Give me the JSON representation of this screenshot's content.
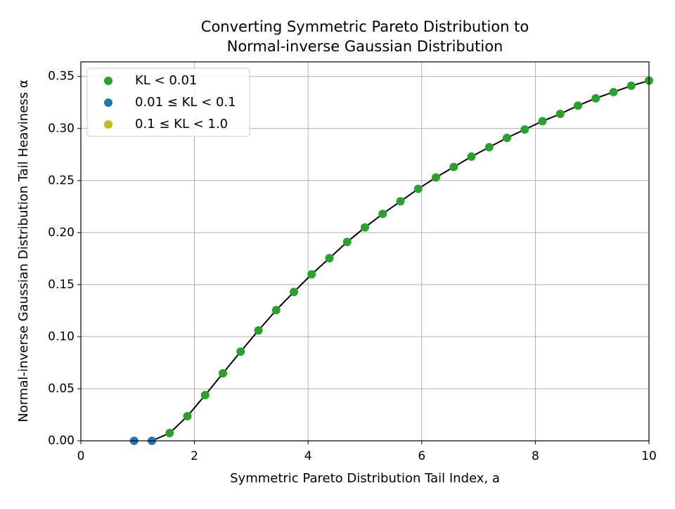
{
  "chart_data": {
    "type": "scatter",
    "title": [
      "Converting Symmetric Pareto Distribution to",
      "Normal-inverse Gaussian Distribution"
    ],
    "x_label": "Symmetric Pareto Distribution Tail Index, a",
    "y_label": "Normal-inverse Gaussian Distribution Tail Heaviness α",
    "xlim": [
      0,
      10
    ],
    "ylim": [
      0,
      0.364
    ],
    "xticks": [
      0,
      2,
      4,
      6,
      8,
      10
    ],
    "yticks": [
      {
        "value": 0,
        "label": "0.00"
      },
      {
        "value": 0.05,
        "label": "0.05"
      },
      {
        "value": 0.1,
        "label": "0.10"
      },
      {
        "value": 0.15,
        "label": "0.15"
      },
      {
        "value": 0.2,
        "label": "0.20"
      },
      {
        "value": 0.25,
        "label": "0.25"
      },
      {
        "value": 0.3,
        "label": "0.30"
      },
      {
        "value": 0.35,
        "label": "0.35"
      }
    ],
    "grid": true,
    "legend": "upper left",
    "series": [
      {
        "name": "KL < 0.01",
        "color": "#2ca02c",
        "x": [
          1.5625,
          1.875,
          2.1875,
          2.5,
          2.8125,
          3.125,
          3.4375,
          3.75,
          4.0625,
          4.375,
          4.6875,
          5.0,
          5.3125,
          5.625,
          5.9375,
          6.25,
          6.5625,
          6.875,
          7.1875,
          7.5,
          7.8125,
          8.125,
          8.4375,
          8.75,
          9.0625,
          9.375,
          9.6875,
          10.0
        ],
        "values": [
          0.0074,
          0.0236,
          0.0439,
          0.0648,
          0.0857,
          0.106,
          0.1255,
          0.143,
          0.16,
          0.1754,
          0.191,
          0.205,
          0.218,
          0.23,
          0.242,
          0.253,
          0.263,
          0.273,
          0.282,
          0.291,
          0.299,
          0.307,
          0.314,
          0.322,
          0.329,
          0.335,
          0.341,
          0.346
        ]
      },
      {
        "name": "0.01 ≤ KL < 0.1",
        "color": "#1f77b4",
        "x": [
          0.9375,
          1.25
        ],
        "values": [
          0,
          0
        ]
      },
      {
        "name": "0.1 ≤ KL < 1.0",
        "color": "#bcbd22",
        "x": [],
        "values": []
      }
    ],
    "line": {
      "color": "#000000",
      "x": [
        1.25,
        1.5625,
        1.875,
        2.1875,
        2.5,
        2.8125,
        3.125,
        3.4375,
        3.75,
        4.0625,
        4.375,
        4.6875,
        5.0,
        5.3125,
        5.625,
        5.9375,
        6.25,
        6.5625,
        6.875,
        7.1875,
        7.5,
        7.8125,
        8.125,
        8.4375,
        8.75,
        9.0625,
        9.375,
        9.6875,
        10.0
      ],
      "values": [
        0,
        0.0074,
        0.0236,
        0.0439,
        0.0648,
        0.0857,
        0.106,
        0.1255,
        0.143,
        0.16,
        0.1754,
        0.191,
        0.205,
        0.218,
        0.23,
        0.242,
        0.253,
        0.263,
        0.273,
        0.282,
        0.291,
        0.299,
        0.307,
        0.314,
        0.322,
        0.329,
        0.335,
        0.341,
        0.346
      ]
    }
  }
}
